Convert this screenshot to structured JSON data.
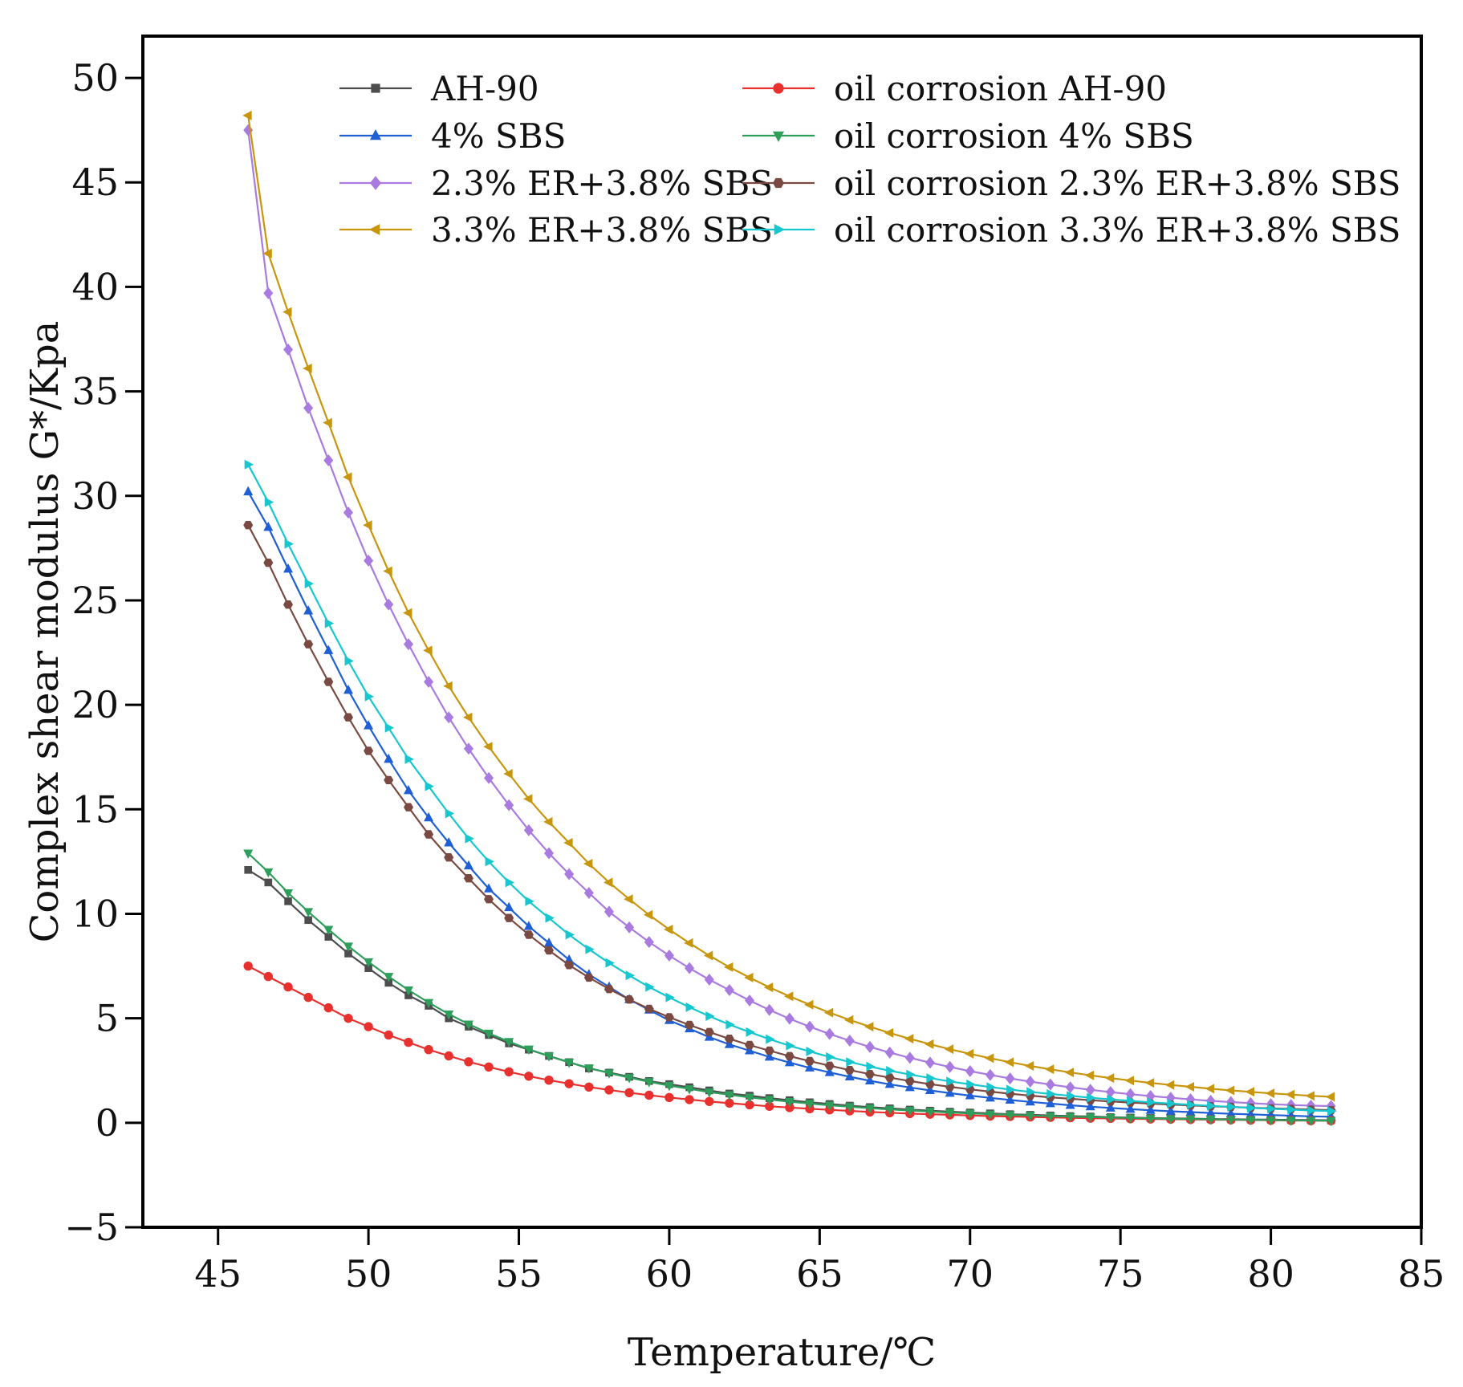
{
  "chart_data": {
    "type": "line",
    "title": "",
    "xlabel": "Temperature/℃",
    "ylabel": "Complex shear modulus G*/Kpa",
    "xlim": [
      42.5,
      85
    ],
    "ylim": [
      -5,
      52
    ],
    "xticks": [
      45,
      50,
      55,
      60,
      65,
      70,
      75,
      80,
      85
    ],
    "yticks": [
      -5,
      0,
      5,
      10,
      15,
      20,
      25,
      30,
      35,
      40,
      45,
      50
    ],
    "grid": false,
    "legend_position": "top, two columns",
    "x": [
      46,
      46.67,
      47.33,
      48,
      48.67,
      49.33,
      50,
      50.67,
      51.33,
      52,
      52.67,
      53.33,
      54,
      54.67,
      55.33,
      56,
      56.67,
      57.33,
      58,
      58.67,
      59.33,
      60,
      60.67,
      61.33,
      62,
      62.67,
      63.33,
      64,
      64.67,
      65.33,
      66,
      66.67,
      67.33,
      68,
      68.67,
      69.33,
      70,
      70.67,
      71.33,
      72,
      72.67,
      73.33,
      74,
      74.67,
      75.33,
      76,
      76.67,
      77.33,
      78,
      78.67,
      79.33,
      80,
      80.67,
      81.33,
      82
    ],
    "series": [
      {
        "name": "AH-90",
        "color": "#4d4d4d",
        "marker": "square",
        "values": [
          12.1,
          11.5,
          10.6,
          9.7,
          8.9,
          8.1,
          7.4,
          6.7,
          6.1,
          5.6,
          5.0,
          4.6,
          4.2,
          3.8,
          3.5,
          3.2,
          2.9,
          2.6,
          2.4,
          2.2,
          2.0,
          1.85,
          1.7,
          1.55,
          1.4,
          1.3,
          1.18,
          1.08,
          0.98,
          0.9,
          0.82,
          0.75,
          0.69,
          0.63,
          0.58,
          0.53,
          0.49,
          0.45,
          0.41,
          0.38,
          0.35,
          0.32,
          0.3,
          0.27,
          0.25,
          0.23,
          0.21,
          0.2,
          0.18,
          0.17,
          0.16,
          0.15,
          0.14,
          0.13,
          0.12
        ]
      },
      {
        "name": "4% SBS",
        "color": "#1f5fd6",
        "marker": "triangle-up",
        "values": [
          30.2,
          28.5,
          26.5,
          24.5,
          22.6,
          20.7,
          19.0,
          17.4,
          15.9,
          14.6,
          13.4,
          12.3,
          11.2,
          10.3,
          9.4,
          8.6,
          7.8,
          7.1,
          6.5,
          5.9,
          5.4,
          4.9,
          4.5,
          4.1,
          3.75,
          3.45,
          3.15,
          2.88,
          2.63,
          2.41,
          2.2,
          2.01,
          1.84,
          1.69,
          1.55,
          1.42,
          1.3,
          1.19,
          1.09,
          1.0,
          0.92,
          0.84,
          0.77,
          0.71,
          0.65,
          0.6,
          0.55,
          0.51,
          0.47,
          0.43,
          0.4,
          0.37,
          0.34,
          0.31,
          0.29
        ]
      },
      {
        "name": "2.3% ER+3.8% SBS",
        "color": "#a97adf",
        "marker": "diamond",
        "values": [
          47.5,
          39.7,
          37.0,
          34.2,
          31.7,
          29.2,
          26.9,
          24.8,
          22.9,
          21.1,
          19.4,
          17.9,
          16.5,
          15.2,
          14.0,
          12.9,
          11.9,
          11.0,
          10.1,
          9.35,
          8.65,
          8.0,
          7.4,
          6.85,
          6.35,
          5.85,
          5.4,
          4.98,
          4.6,
          4.25,
          3.93,
          3.63,
          3.36,
          3.11,
          2.88,
          2.67,
          2.47,
          2.29,
          2.12,
          1.97,
          1.83,
          1.7,
          1.58,
          1.47,
          1.37,
          1.28,
          1.2,
          1.12,
          1.05,
          0.99,
          0.94,
          0.89,
          0.85,
          0.82,
          0.8
        ]
      },
      {
        "name": "3.3% ER+3.8% SBS",
        "color": "#c8960c",
        "marker": "triangle-left",
        "values": [
          48.2,
          41.6,
          38.8,
          36.1,
          33.5,
          30.9,
          28.6,
          26.4,
          24.4,
          22.6,
          20.9,
          19.4,
          18.0,
          16.7,
          15.5,
          14.4,
          13.4,
          12.4,
          11.5,
          10.7,
          9.95,
          9.25,
          8.6,
          8.0,
          7.45,
          6.95,
          6.48,
          6.05,
          5.65,
          5.27,
          4.92,
          4.6,
          4.3,
          4.02,
          3.76,
          3.52,
          3.3,
          3.09,
          2.9,
          2.72,
          2.56,
          2.41,
          2.27,
          2.14,
          2.02,
          1.91,
          1.81,
          1.72,
          1.63,
          1.55,
          1.48,
          1.41,
          1.35,
          1.29,
          1.24
        ]
      },
      {
        "name": "oil corrosion AH-90",
        "color": "#e8312f",
        "marker": "circle",
        "values": [
          7.5,
          7.0,
          6.5,
          6.0,
          5.5,
          5.0,
          4.6,
          4.2,
          3.85,
          3.5,
          3.2,
          2.92,
          2.67,
          2.44,
          2.23,
          2.04,
          1.87,
          1.71,
          1.57,
          1.44,
          1.32,
          1.21,
          1.11,
          1.02,
          0.94,
          0.86,
          0.79,
          0.73,
          0.67,
          0.62,
          0.57,
          0.52,
          0.48,
          0.44,
          0.41,
          0.38,
          0.35,
          0.32,
          0.3,
          0.28,
          0.26,
          0.24,
          0.22,
          0.21,
          0.19,
          0.18,
          0.17,
          0.16,
          0.15,
          0.14,
          0.13,
          0.12,
          0.11,
          0.1,
          0.1
        ]
      },
      {
        "name": "oil corrosion 4% SBS",
        "color": "#2e9e5b",
        "marker": "triangle-down",
        "values": [
          12.9,
          12.0,
          11.0,
          10.1,
          9.25,
          8.45,
          7.7,
          7.0,
          6.35,
          5.75,
          5.2,
          4.72,
          4.28,
          3.88,
          3.52,
          3.19,
          2.89,
          2.62,
          2.38,
          2.16,
          1.96,
          1.78,
          1.62,
          1.47,
          1.34,
          1.22,
          1.11,
          1.01,
          0.92,
          0.84,
          0.77,
          0.7,
          0.64,
          0.59,
          0.54,
          0.49,
          0.45,
          0.41,
          0.38,
          0.35,
          0.32,
          0.29,
          0.27,
          0.25,
          0.23,
          0.21,
          0.19,
          0.18,
          0.17,
          0.15,
          0.14,
          0.13,
          0.12,
          0.11,
          0.1
        ]
      },
      {
        "name": "oil corrosion 2.3% ER+3.8% SBS",
        "color": "#7a4a42",
        "marker": "hexagon",
        "values": [
          28.6,
          26.8,
          24.8,
          22.9,
          21.1,
          19.4,
          17.8,
          16.4,
          15.1,
          13.8,
          12.7,
          11.7,
          10.7,
          9.8,
          9.0,
          8.25,
          7.55,
          6.95,
          6.4,
          5.9,
          5.45,
          5.05,
          4.68,
          4.34,
          4.02,
          3.72,
          3.45,
          3.19,
          2.95,
          2.73,
          2.52,
          2.33,
          2.16,
          2.0,
          1.85,
          1.72,
          1.6,
          1.49,
          1.39,
          1.3,
          1.22,
          1.15,
          1.08,
          1.02,
          0.97,
          0.92,
          0.87,
          0.83,
          0.79,
          0.76,
          0.72,
          0.69,
          0.66,
          0.63,
          0.6
        ]
      },
      {
        "name": "oil corrosion 3.3% ER+3.8% SBS",
        "color": "#17c7cf",
        "marker": "triangle-right",
        "values": [
          31.5,
          29.7,
          27.7,
          25.8,
          23.9,
          22.1,
          20.4,
          18.9,
          17.4,
          16.1,
          14.8,
          13.6,
          12.5,
          11.5,
          10.6,
          9.8,
          9.0,
          8.3,
          7.65,
          7.05,
          6.5,
          6.0,
          5.53,
          5.1,
          4.7,
          4.34,
          4.0,
          3.69,
          3.41,
          3.15,
          2.91,
          2.69,
          2.49,
          2.31,
          2.14,
          1.98,
          1.84,
          1.71,
          1.59,
          1.48,
          1.38,
          1.29,
          1.2,
          1.12,
          1.05,
          0.98,
          0.92,
          0.86,
          0.81,
          0.76,
          0.71,
          0.67,
          0.63,
          0.59,
          0.56
        ]
      }
    ]
  }
}
